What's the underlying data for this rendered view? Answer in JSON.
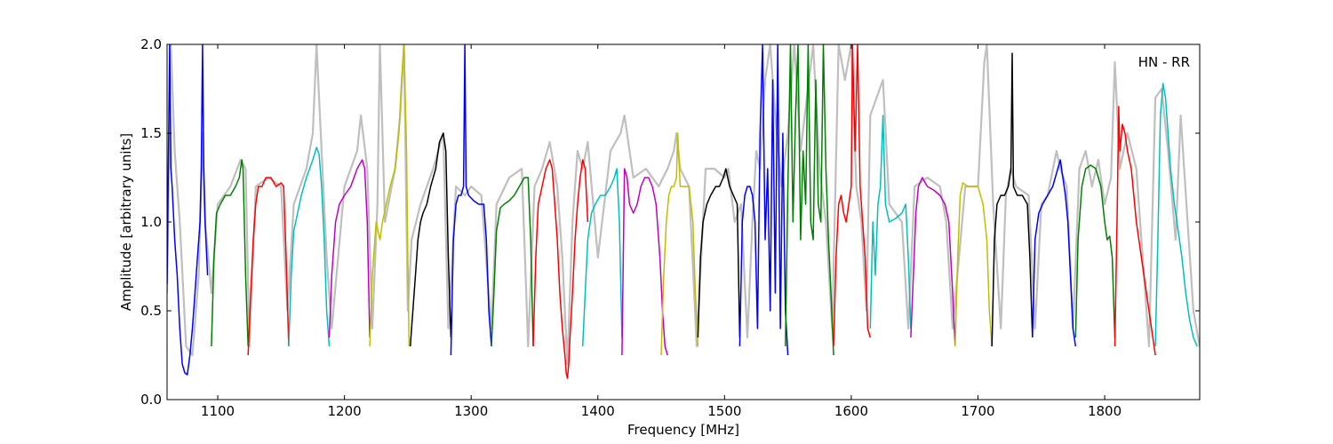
{
  "chart_data": {
    "type": "line",
    "title": "",
    "xlabel": "Frequency [MHz]",
    "ylabel": "Amplitude [arbitrary units]",
    "xlim": [
      1060,
      1875
    ],
    "ylim": [
      0.0,
      2.0
    ],
    "xticks": [
      1100,
      1200,
      1300,
      1400,
      1500,
      1600,
      1700,
      1800
    ],
    "xtick_labels": [
      "1100",
      "1200",
      "1300",
      "1400",
      "1500",
      "1600",
      "1700",
      "1800"
    ],
    "yticks": [
      0.0,
      0.5,
      1.0,
      1.5,
      2.0
    ],
    "ytick_labels": [
      "0.0",
      "0.5",
      "1.0",
      "1.5",
      "2.0"
    ],
    "annotation": "HN - RR",
    "annotation_position": "top-right",
    "grid": false,
    "legend": false,
    "background_trace": {
      "color": "#bfbfbf",
      "x": [
        1060,
        1063,
        1066,
        1070,
        1075,
        1080,
        1085,
        1088,
        1090,
        1095,
        1100,
        1110,
        1118,
        1122,
        1125,
        1130,
        1140,
        1150,
        1155,
        1160,
        1170,
        1175,
        1178,
        1182,
        1186,
        1190,
        1200,
        1210,
        1213,
        1218,
        1222,
        1226,
        1228,
        1232,
        1240,
        1244,
        1247,
        1250,
        1253,
        1260,
        1270,
        1278,
        1282,
        1288,
        1295,
        1300,
        1308,
        1316,
        1320,
        1330,
        1340,
        1345,
        1350,
        1356,
        1362,
        1368,
        1372,
        1376,
        1380,
        1384,
        1388,
        1392,
        1400,
        1410,
        1418,
        1421,
        1428,
        1438,
        1448,
        1455,
        1460,
        1462,
        1465,
        1472,
        1478,
        1485,
        1492,
        1500,
        1503,
        1508,
        1513,
        1518,
        1522,
        1525,
        1528,
        1532,
        1536,
        1540,
        1545,
        1550,
        1555,
        1560,
        1565,
        1570,
        1575,
        1580,
        1585,
        1590,
        1595,
        1600,
        1604,
        1608,
        1612,
        1615,
        1620,
        1625,
        1630,
        1640,
        1645,
        1650,
        1660,
        1670,
        1675,
        1680,
        1690,
        1700,
        1705,
        1707,
        1712,
        1718,
        1722,
        1726,
        1730,
        1740,
        1745,
        1750,
        1755,
        1762,
        1765,
        1770,
        1775,
        1780,
        1785,
        1790,
        1795,
        1800,
        1805,
        1808,
        1812,
        1818,
        1825,
        1835,
        1840,
        1845,
        1850,
        1856,
        1860,
        1870,
        1875
      ],
      "y": [
        0.6,
        2.0,
        1.4,
        1.0,
        0.3,
        0.25,
        0.7,
        1.5,
        1.0,
        0.6,
        1.1,
        1.2,
        1.35,
        1.3,
        0.3,
        1.2,
        1.25,
        1.2,
        0.5,
        1.1,
        1.3,
        1.5,
        2.0,
        1.4,
        0.8,
        0.4,
        1.2,
        1.4,
        1.6,
        1.3,
        0.4,
        1.1,
        2.0,
        1.0,
        1.3,
        1.6,
        2.0,
        0.5,
        0.9,
        1.1,
        1.3,
        1.5,
        0.4,
        1.2,
        1.15,
        1.2,
        1.15,
        0.4,
        1.1,
        1.25,
        1.3,
        0.3,
        1.2,
        1.3,
        1.45,
        1.2,
        0.8,
        0.2,
        1.0,
        1.4,
        1.3,
        1.45,
        0.8,
        1.4,
        1.5,
        1.6,
        1.25,
        1.3,
        1.2,
        1.3,
        1.4,
        1.5,
        1.3,
        1.2,
        0.3,
        1.3,
        1.3,
        1.25,
        1.3,
        1.0,
        1.1,
        0.35,
        1.0,
        1.4,
        1.3,
        1.8,
        2.0,
        1.6,
        1.2,
        1.5,
        2.0,
        1.4,
        1.7,
        2.0,
        1.3,
        1.0,
        0.4,
        2.0,
        1.8,
        2.0,
        1.2,
        1.0,
        0.5,
        1.6,
        1.7,
        1.8,
        1.1,
        1.0,
        0.4,
        1.2,
        1.25,
        1.2,
        1.0,
        0.4,
        1.2,
        1.2,
        1.9,
        2.0,
        1.1,
        0.4,
        1.15,
        1.3,
        1.2,
        1.15,
        0.4,
        1.1,
        1.15,
        1.4,
        1.3,
        1.2,
        0.4,
        1.3,
        1.4,
        1.2,
        1.35,
        1.1,
        1.25,
        1.9,
        1.3,
        1.5,
        1.3,
        0.3,
        1.7,
        1.75,
        1.4,
        0.9,
        1.6,
        0.5,
        0.3
      ]
    },
    "series": [
      {
        "color": "#0000ff",
        "x": [
          1060,
          1062,
          1063,
          1064,
          1066,
          1068,
          1070,
          1072,
          1074,
          1076,
          1078,
          1080,
          1082,
          1084,
          1086,
          1087,
          1088,
          1089,
          1090,
          1092
        ],
        "y": [
          0.65,
          2.0,
          1.3,
          1.2,
          0.9,
          0.7,
          0.4,
          0.2,
          0.15,
          0.14,
          0.25,
          0.4,
          0.6,
          0.8,
          1.0,
          1.3,
          2.0,
          1.3,
          1.0,
          0.7
        ]
      },
      {
        "color": "#008000",
        "x": [
          1095,
          1097,
          1099,
          1102,
          1106,
          1110,
          1114,
          1117,
          1119,
          1120,
          1122,
          1124
        ],
        "y": [
          0.3,
          0.8,
          1.05,
          1.1,
          1.15,
          1.15,
          1.2,
          1.25,
          1.35,
          1.3,
          0.7,
          0.3
        ]
      },
      {
        "color": "#ff0000",
        "x": [
          1124,
          1126,
          1128,
          1130,
          1132,
          1135,
          1138,
          1142,
          1146,
          1150,
          1152,
          1154,
          1156
        ],
        "y": [
          0.25,
          0.6,
          0.9,
          1.1,
          1.2,
          1.2,
          1.25,
          1.25,
          1.2,
          1.22,
          1.2,
          0.8,
          0.3
        ]
      },
      {
        "color": "#00bfbf",
        "x": [
          1156,
          1158,
          1160,
          1163,
          1166,
          1170,
          1175,
          1178,
          1180,
          1182,
          1184,
          1186,
          1188
        ],
        "y": [
          0.3,
          0.7,
          0.95,
          1.05,
          1.15,
          1.25,
          1.35,
          1.42,
          1.38,
          1.2,
          0.9,
          0.5,
          0.3
        ]
      },
      {
        "color": "#bf00bf",
        "x": [
          1188,
          1190,
          1193,
          1196,
          1200,
          1205,
          1210,
          1214,
          1216,
          1218,
          1220
        ],
        "y": [
          0.35,
          0.7,
          1.0,
          1.1,
          1.15,
          1.2,
          1.3,
          1.35,
          1.3,
          1.0,
          0.35
        ]
      },
      {
        "color": "#bfbf00",
        "x": [
          1220,
          1222,
          1225,
          1228,
          1230,
          1233,
          1236,
          1240,
          1243,
          1245,
          1247,
          1249,
          1250,
          1251
        ],
        "y": [
          0.3,
          0.7,
          1.0,
          0.9,
          1.0,
          1.1,
          1.2,
          1.3,
          1.5,
          1.8,
          2.0,
          1.4,
          0.8,
          0.3
        ]
      },
      {
        "color": "#000000",
        "x": [
          1252,
          1254,
          1256,
          1258,
          1260,
          1262,
          1265,
          1268,
          1272,
          1275,
          1278,
          1280,
          1282,
          1284
        ],
        "y": [
          0.3,
          0.5,
          0.7,
          0.9,
          1.0,
          1.05,
          1.1,
          1.2,
          1.3,
          1.45,
          1.5,
          1.4,
          0.8,
          0.35
        ]
      },
      {
        "color": "#0000ff",
        "x": [
          1284,
          1286,
          1288,
          1290,
          1292,
          1294,
          1295,
          1296,
          1298,
          1302,
          1306,
          1310,
          1312,
          1314,
          1316
        ],
        "y": [
          0.25,
          0.9,
          1.1,
          1.15,
          1.15,
          1.2,
          2.0,
          1.2,
          1.15,
          1.12,
          1.1,
          1.1,
          0.9,
          0.5,
          0.3
        ]
      },
      {
        "color": "#008000",
        "x": [
          1316,
          1318,
          1320,
          1323,
          1326,
          1330,
          1334,
          1338,
          1342,
          1345,
          1347,
          1349
        ],
        "y": [
          0.3,
          0.6,
          0.95,
          1.08,
          1.1,
          1.12,
          1.15,
          1.2,
          1.25,
          1.25,
          0.9,
          0.3
        ]
      },
      {
        "color": "#ff0000",
        "x": [
          1349,
          1351,
          1353,
          1356,
          1359,
          1362,
          1364,
          1366,
          1368,
          1370,
          1372,
          1374,
          1375,
          1376,
          1377,
          1378,
          1380,
          1382,
          1384,
          1386,
          1388,
          1390,
          1392
        ],
        "y": [
          0.3,
          0.8,
          1.1,
          1.2,
          1.3,
          1.35,
          1.3,
          1.1,
          0.9,
          0.6,
          0.4,
          0.25,
          0.15,
          0.12,
          0.2,
          0.35,
          0.6,
          0.9,
          1.1,
          1.25,
          1.35,
          1.3,
          1.0
        ]
      },
      {
        "color": "#00bfbf",
        "x": [
          1388,
          1390,
          1392,
          1395,
          1398,
          1402,
          1406,
          1410,
          1413,
          1415,
          1417,
          1419
        ],
        "y": [
          0.3,
          0.6,
          0.9,
          1.05,
          1.1,
          1.15,
          1.15,
          1.2,
          1.25,
          1.3,
          1.0,
          0.35
        ]
      },
      {
        "color": "#bf00bf",
        "x": [
          1419,
          1421,
          1423,
          1425,
          1428,
          1431,
          1434,
          1437,
          1440,
          1443,
          1446,
          1449,
          1451,
          1453,
          1455
        ],
        "y": [
          0.25,
          1.3,
          1.25,
          1.1,
          1.05,
          1.1,
          1.2,
          1.25,
          1.25,
          1.2,
          1.1,
          0.8,
          0.5,
          0.3,
          0.25
        ]
      },
      {
        "color": "#bfbf00",
        "x": [
          1450,
          1452,
          1454,
          1456,
          1458,
          1460,
          1462,
          1463,
          1465,
          1468,
          1472,
          1475,
          1477,
          1479
        ],
        "y": [
          0.25,
          0.7,
          1.0,
          1.15,
          1.2,
          1.2,
          1.25,
          1.5,
          1.2,
          1.2,
          1.2,
          1.0,
          0.6,
          0.3
        ]
      },
      {
        "color": "#000000",
        "x": [
          1479,
          1481,
          1483,
          1486,
          1489,
          1493,
          1496,
          1499,
          1501,
          1504,
          1507,
          1510,
          1512
        ],
        "y": [
          0.35,
          0.8,
          1.0,
          1.1,
          1.15,
          1.2,
          1.2,
          1.25,
          1.3,
          1.2,
          1.15,
          1.1,
          0.35
        ]
      },
      {
        "color": "#0000ff",
        "x": [
          1512,
          1514,
          1516,
          1518,
          1520,
          1522,
          1524,
          1526,
          1528,
          1530,
          1532,
          1534,
          1536,
          1538,
          1540,
          1542,
          1544,
          1546,
          1548,
          1550
        ],
        "y": [
          0.3,
          1.0,
          1.15,
          1.2,
          1.2,
          1.15,
          1.0,
          0.4,
          1.5,
          2.0,
          0.9,
          1.3,
          0.5,
          1.8,
          0.6,
          2.0,
          0.4,
          1.5,
          0.5,
          0.25
        ]
      },
      {
        "color": "#008000",
        "x": [
          1548,
          1550,
          1552,
          1554,
          1556,
          1558,
          1560,
          1562,
          1564,
          1566,
          1568,
          1570,
          1572,
          1574,
          1576,
          1578,
          1580,
          1582,
          1584,
          1586
        ],
        "y": [
          0.3,
          1.2,
          2.0,
          1.0,
          1.6,
          2.0,
          0.9,
          1.4,
          1.1,
          2.0,
          1.0,
          0.9,
          1.8,
          1.1,
          1.0,
          2.0,
          1.3,
          0.9,
          0.6,
          0.25
        ]
      },
      {
        "color": "#ff0000",
        "x": [
          1586,
          1588,
          1590,
          1592,
          1594,
          1596,
          1598,
          1600,
          1601,
          1603,
          1605,
          1607,
          1609,
          1611,
          1613,
          1615
        ],
        "y": [
          0.3,
          0.8,
          1.1,
          1.15,
          1.05,
          1.0,
          1.1,
          1.2,
          2.0,
          1.4,
          2.0,
          1.2,
          1.0,
          0.8,
          0.4,
          0.35
        ]
      },
      {
        "color": "#00bfbf",
        "x": [
          1615,
          1617,
          1619,
          1621,
          1623,
          1625,
          1627,
          1630,
          1635,
          1640,
          1643,
          1645,
          1647
        ],
        "y": [
          0.4,
          1.0,
          0.7,
          1.1,
          1.2,
          1.6,
          1.1,
          1.0,
          1.02,
          1.05,
          1.1,
          0.8,
          0.4
        ]
      },
      {
        "color": "#bf00bf",
        "x": [
          1647,
          1649,
          1651,
          1653,
          1656,
          1660,
          1665,
          1670,
          1674,
          1677,
          1680,
          1682
        ],
        "y": [
          0.35,
          0.7,
          1.05,
          1.2,
          1.25,
          1.2,
          1.18,
          1.15,
          1.1,
          1.0,
          0.6,
          0.3
        ]
      },
      {
        "color": "#bfbf00",
        "x": [
          1682,
          1684,
          1686,
          1688,
          1692,
          1696,
          1700,
          1704,
          1707,
          1709,
          1711
        ],
        "y": [
          0.3,
          0.8,
          1.15,
          1.22,
          1.2,
          1.2,
          1.2,
          1.1,
          0.9,
          0.5,
          0.3
        ]
      },
      {
        "color": "#000000",
        "x": [
          1711,
          1713,
          1715,
          1718,
          1721,
          1724,
          1726,
          1727,
          1728,
          1731,
          1735,
          1739,
          1741,
          1743
        ],
        "y": [
          0.3,
          0.9,
          1.1,
          1.15,
          1.15,
          1.2,
          1.3,
          1.95,
          1.2,
          1.15,
          1.15,
          1.1,
          0.8,
          0.35
        ]
      },
      {
        "color": "#0000ff",
        "x": [
          1743,
          1745,
          1748,
          1751,
          1755,
          1759,
          1763,
          1765,
          1767,
          1769,
          1771,
          1773,
          1775,
          1777
        ],
        "y": [
          0.35,
          0.9,
          1.05,
          1.1,
          1.15,
          1.2,
          1.3,
          1.35,
          1.25,
          1.15,
          1.0,
          0.7,
          0.4,
          0.3
        ]
      },
      {
        "color": "#008000",
        "x": [
          1777,
          1779,
          1782,
          1785,
          1789,
          1793,
          1797,
          1800,
          1802,
          1804,
          1806,
          1808
        ],
        "y": [
          0.35,
          0.9,
          1.2,
          1.3,
          1.32,
          1.3,
          1.2,
          1.0,
          0.9,
          0.92,
          0.8,
          0.35
        ]
      },
      {
        "color": "#ff0000",
        "x": [
          1808,
          1810,
          1811,
          1812,
          1814,
          1816,
          1818,
          1821,
          1825,
          1829,
          1833,
          1837,
          1840
        ],
        "y": [
          0.3,
          1.1,
          1.65,
          1.4,
          1.55,
          1.5,
          1.4,
          1.3,
          1.0,
          0.8,
          0.6,
          0.4,
          0.25
        ]
      },
      {
        "color": "#00bfbf",
        "x": [
          1840,
          1842,
          1844,
          1846,
          1848,
          1850,
          1852,
          1855,
          1858,
          1861,
          1864,
          1867,
          1870,
          1873
        ],
        "y": [
          0.3,
          0.9,
          1.6,
          1.78,
          1.7,
          1.5,
          1.3,
          1.1,
          0.95,
          0.8,
          0.6,
          0.45,
          0.35,
          0.3
        ]
      }
    ]
  }
}
